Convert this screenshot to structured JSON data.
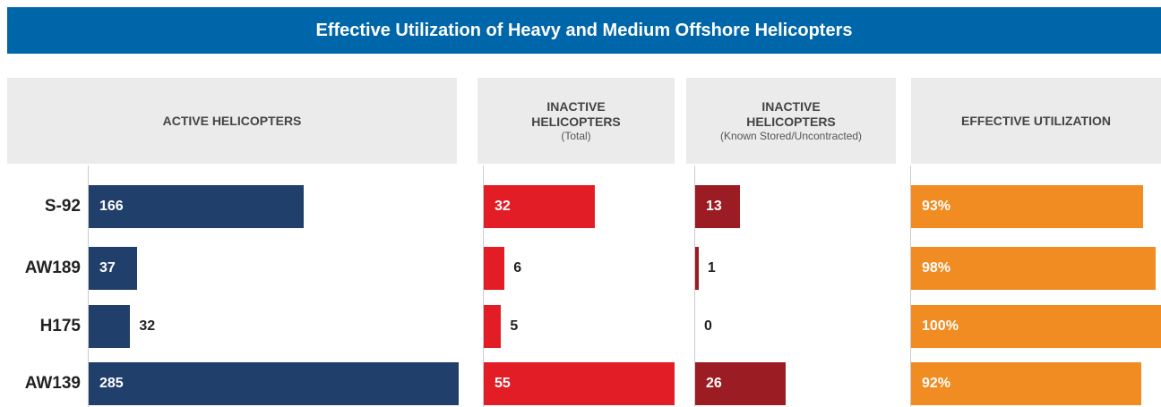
{
  "title": "Effective Utilization of Heavy and Medium Offshore Helicopters",
  "categories": [
    "S-92",
    "AW189",
    "H175",
    "AW139"
  ],
  "chart_data": [
    {
      "type": "bar",
      "orientation": "horizontal",
      "title": "ACTIVE HELICOPTERS",
      "values": [
        166,
        37,
        32,
        285
      ],
      "color": "#213f6b",
      "xlim": [
        0,
        290
      ]
    },
    {
      "type": "bar",
      "orientation": "horizontal",
      "title": "INACTIVE HELICOPTERS",
      "subtitle": "(Total)",
      "values": [
        32,
        6,
        5,
        55
      ],
      "color": "#e21d25",
      "xlim": [
        0,
        56
      ]
    },
    {
      "type": "bar",
      "orientation": "horizontal",
      "title": "INACTIVE HELICOPTERS",
      "subtitle": "(Known Stored/Uncontracted)",
      "values": [
        13,
        1,
        0,
        26
      ],
      "color": "#9b1c22",
      "xlim": [
        0,
        57
      ]
    },
    {
      "type": "bar",
      "orientation": "horizontal",
      "title": "EFFECTIVE UTILIZATION",
      "values": [
        93,
        98,
        100,
        92
      ],
      "value_labels": [
        "93%",
        "98%",
        "100%",
        "92%"
      ],
      "color": "#f08c22",
      "xlim": [
        0,
        100
      ]
    }
  ]
}
